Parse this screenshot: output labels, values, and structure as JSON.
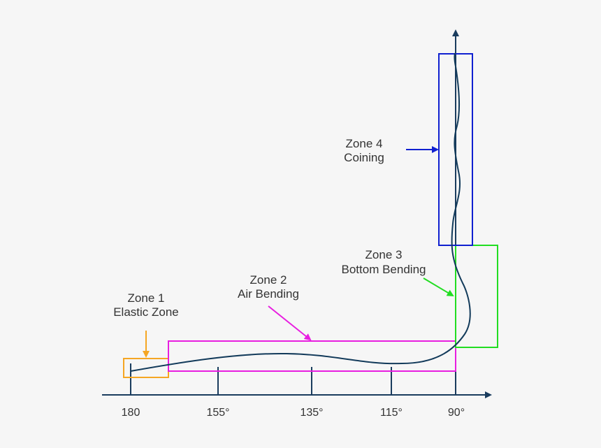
{
  "colors": {
    "axis": "#1a3c5e",
    "curve": "#123a5a",
    "zone1": "#f5a623",
    "zone2": "#e81ee0",
    "zone3": "#22dd22",
    "zone4": "#1020d0",
    "text": "#333333"
  },
  "axis": {
    "ticks": [
      "180",
      "155°",
      "135°",
      "115°",
      "90°"
    ]
  },
  "zones": [
    {
      "id": "zone1",
      "line1": "Zone 1",
      "line2": "Elastic Zone"
    },
    {
      "id": "zone2",
      "line1": "Zone 2",
      "line2": "Air Bending"
    },
    {
      "id": "zone3",
      "line1": "Zone 3",
      "line2": "Bottom Bending"
    },
    {
      "id": "zone4",
      "line1": "Zone 4",
      "line2": "Coining"
    }
  ]
}
